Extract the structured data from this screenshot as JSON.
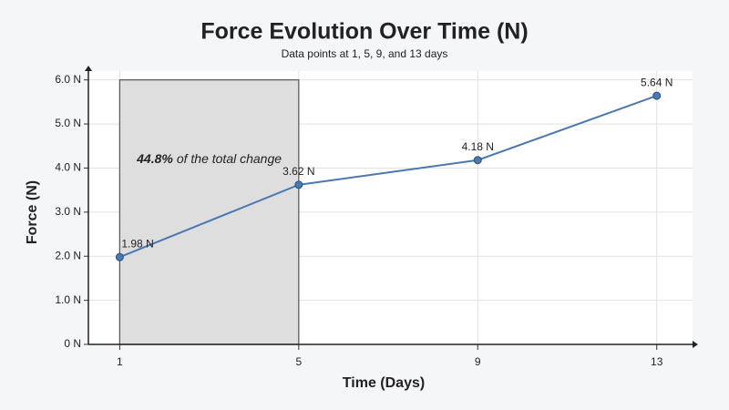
{
  "chart_data": {
    "type": "line",
    "title": "Force Evolution Over Time (N)",
    "subtitle": "Data points at 1, 5, 9, and 13 days",
    "x_label": "Time (Days)",
    "y_label": "Force (N)",
    "x": [
      1,
      5,
      9,
      13
    ],
    "series": [
      {
        "name": "Force",
        "color": "#4a78b0",
        "values": [
          1.98,
          3.62,
          4.18,
          5.64
        ],
        "value_labels": [
          "1.98 N",
          "3.62 N",
          "4.18 N",
          "5.64 N"
        ]
      }
    ],
    "xlim": [
      0.3,
      13.8
    ],
    "xticks": [
      1,
      5,
      9,
      13
    ],
    "ylim": [
      0,
      6.2
    ],
    "yticks": [
      {
        "value": 0,
        "label": "0 N"
      },
      {
        "value": 1,
        "label": "1.0 N"
      },
      {
        "value": 2,
        "label": "2.0 N"
      },
      {
        "value": 3,
        "label": "3.0 N"
      },
      {
        "value": 4,
        "label": "4.0 N"
      },
      {
        "value": 5,
        "label": "5.0 N"
      },
      {
        "value": 6,
        "label": "6.0 N"
      }
    ],
    "grid": true,
    "highlight": {
      "x_range": [
        1,
        5
      ],
      "y_range": [
        0,
        6
      ],
      "color": "#dedede",
      "annotation_value": {
        "value": 44.8,
        "label": "44.8%"
      },
      "annotation_text": "of the total change"
    }
  }
}
